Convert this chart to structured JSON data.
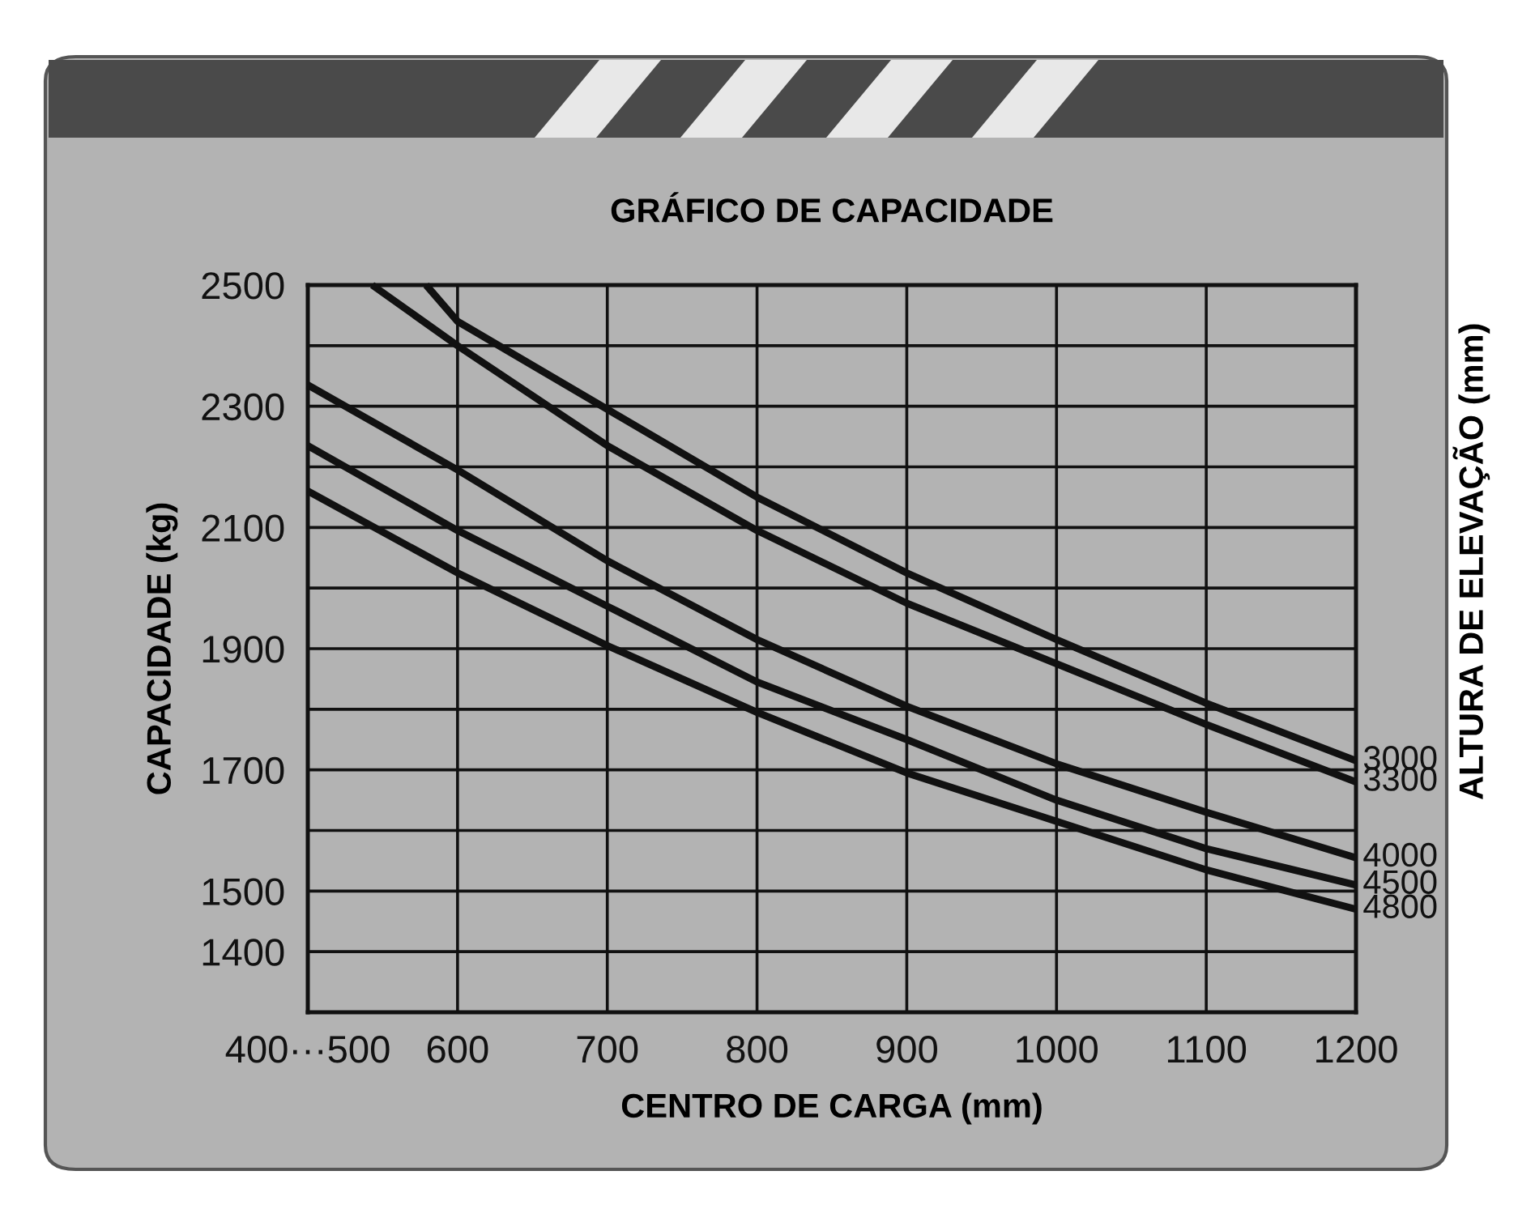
{
  "chart_data": {
    "type": "line",
    "title": "GRÁFICO DE CAPACIDADE",
    "xlabel": "CENTRO DE CARGA (mm)",
    "ylabel": "CAPACIDADE (kg)",
    "y2label": "ALTURA DE ELEVAÇÃO (mm)",
    "xlim": [
      500,
      1200
    ],
    "ylim": [
      1300,
      2500
    ],
    "xticks": [
      {
        "value": 500,
        "label": "400···500"
      },
      600,
      700,
      800,
      900,
      1000,
      1100,
      1200
    ],
    "yticks": [
      {
        "value": 1300,
        "label": null
      },
      1400,
      1500,
      {
        "value": 1600,
        "label": null
      },
      1700,
      {
        "value": 1800,
        "label": null
      },
      1900,
      {
        "value": 2000,
        "label": null
      },
      2100,
      {
        "value": 2200,
        "label": null
      },
      2300,
      {
        "value": 2400,
        "label": null
      },
      2500
    ],
    "grid": true,
    "legend": false,
    "marker": "none",
    "line_style": "solid",
    "series": [
      {
        "name": "3000",
        "color": "#111111",
        "x": [
          579,
          600,
          700,
          800,
          900,
          1000,
          1100,
          1200
        ],
        "values": [
          2500,
          2440,
          2295,
          2150,
          2025,
          1915,
          1810,
          1715
        ]
      },
      {
        "name": "3300",
        "color": "#111111",
        "x": [
          543,
          600,
          700,
          800,
          900,
          1000,
          1100,
          1200
        ],
        "values": [
          2500,
          2400,
          2235,
          2095,
          1975,
          1875,
          1775,
          1680
        ]
      },
      {
        "name": "4000",
        "color": "#111111",
        "x": [
          500,
          600,
          700,
          800,
          900,
          1000,
          1100,
          1200
        ],
        "values": [
          2335,
          2195,
          2045,
          1915,
          1805,
          1710,
          1630,
          1555
        ]
      },
      {
        "name": "4500",
        "color": "#111111",
        "x": [
          500,
          600,
          700,
          800,
          900,
          1000,
          1100,
          1200
        ],
        "values": [
          2235,
          2095,
          1970,
          1845,
          1750,
          1650,
          1570,
          1510
        ]
      },
      {
        "name": "4800",
        "color": "#111111",
        "x": [
          500,
          600,
          700,
          800,
          900,
          1000,
          1100,
          1200
        ],
        "values": [
          2160,
          2025,
          1905,
          1795,
          1695,
          1615,
          1535,
          1470
        ]
      }
    ]
  }
}
